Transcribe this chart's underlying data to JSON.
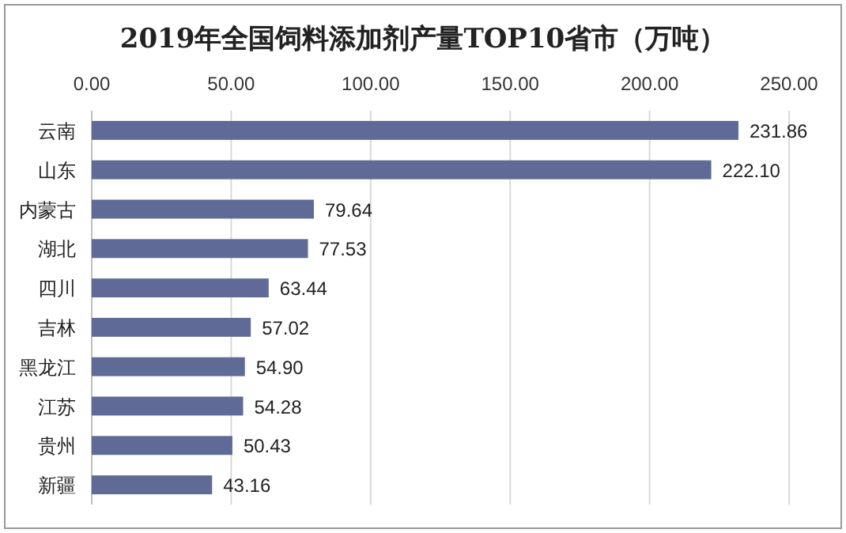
{
  "chart_data": {
    "type": "bar",
    "orientation": "horizontal",
    "title": "2019年全国饲料添加剂产量TOP10省市（万吨）",
    "categories": [
      "云南",
      "山东",
      "内蒙古",
      "湖北",
      "四川",
      "吉林",
      "黑龙江",
      "江苏",
      "贵州",
      "新疆"
    ],
    "values": [
      231.86,
      222.1,
      79.64,
      77.53,
      63.44,
      57.02,
      54.9,
      54.28,
      50.43,
      43.16
    ],
    "value_labels": [
      "231.86",
      "222.10",
      "79.64",
      "77.53",
      "63.44",
      "57.02",
      "54.90",
      "54.28",
      "50.43",
      "43.16"
    ],
    "color": "#5f6b96",
    "xlim": [
      0,
      250
    ],
    "xticks": [
      {
        "value": 0,
        "label": "0.00"
      },
      {
        "value": 50,
        "label": "50.00"
      },
      {
        "value": 100,
        "label": "100.00"
      },
      {
        "value": 150,
        "label": "150.00"
      },
      {
        "value": 200,
        "label": "200.00"
      },
      {
        "value": 250,
        "label": "250.00"
      }
    ],
    "grid": "x"
  }
}
